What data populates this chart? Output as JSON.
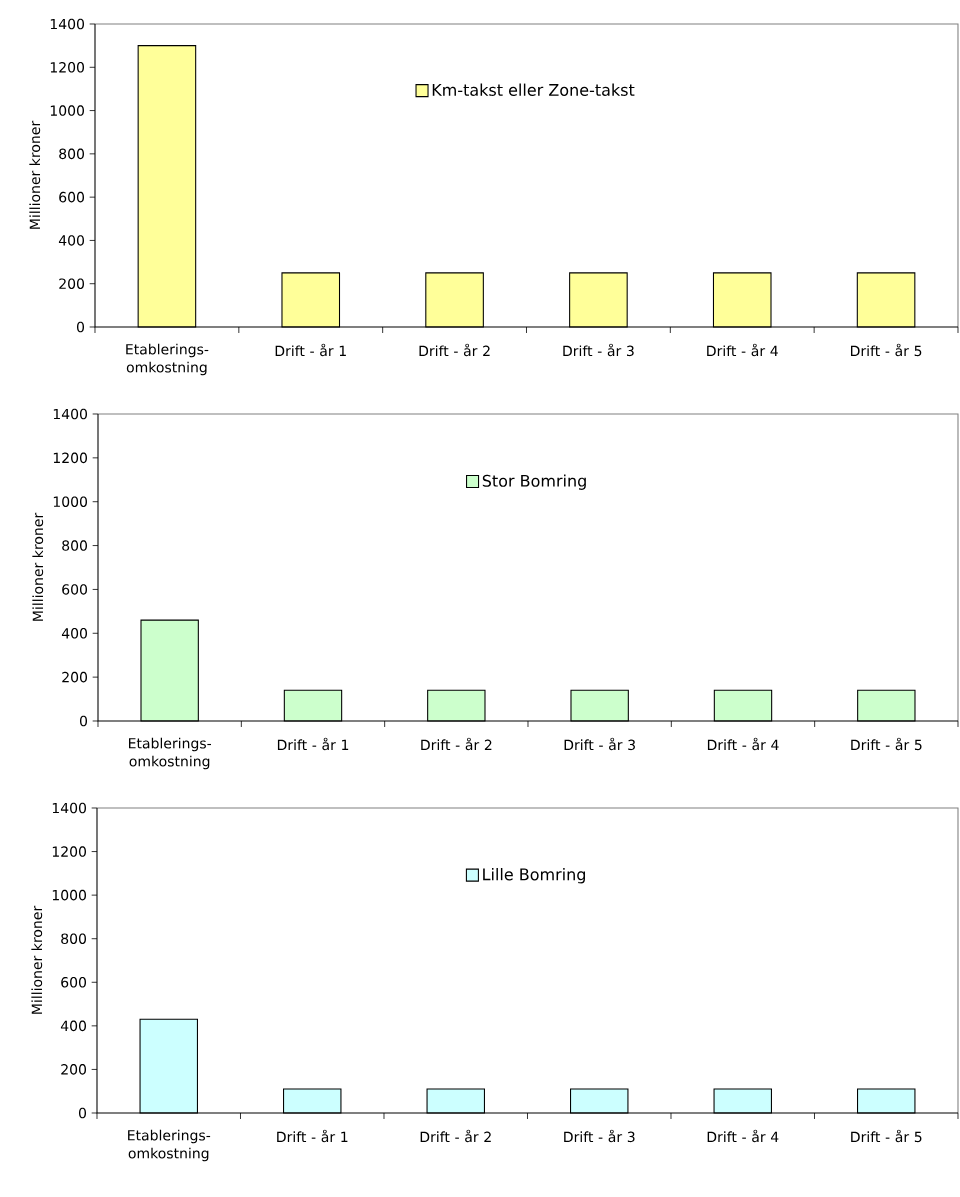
{
  "chart_data": [
    {
      "type": "bar",
      "categories": [
        "Etablerings-omkostning",
        "Drift - år 1",
        "Drift - år 2",
        "Drift - år 3",
        "Drift - år 4",
        "Drift - år 5"
      ],
      "series": [
        {
          "name": "Km-takst eller Zone-takst",
          "color": "#ffff99",
          "values": [
            1300,
            250,
            250,
            250,
            250,
            250
          ]
        }
      ],
      "ylabel": "Millioner kroner",
      "ylim": [
        0,
        1400
      ],
      "yticks": [
        0,
        200,
        400,
        600,
        800,
        1000,
        1200,
        1400
      ],
      "legend": "top"
    },
    {
      "type": "bar",
      "categories": [
        "Etablerings-omkostning",
        "Drift - år 1",
        "Drift - år 2",
        "Drift - år 3",
        "Drift - år 4",
        "Drift - år 5"
      ],
      "series": [
        {
          "name": "Stor Bomring",
          "color": "#ccffcc",
          "values": [
            460,
            140,
            140,
            140,
            140,
            140
          ]
        }
      ],
      "ylabel": "Millioner kroner",
      "ylim": [
        0,
        1400
      ],
      "yticks": [
        0,
        200,
        400,
        600,
        800,
        1000,
        1200,
        1400
      ],
      "legend": "top"
    },
    {
      "type": "bar",
      "categories": [
        "Etablerings-omkostning",
        "Drift - år 1",
        "Drift - år 2",
        "Drift - år 3",
        "Drift - år 4",
        "Drift - år 5"
      ],
      "series": [
        {
          "name": "Lille Bomring",
          "color": "#ccffff",
          "values": [
            430,
            110,
            110,
            110,
            110,
            110
          ]
        }
      ],
      "ylabel": "Millioner kroner",
      "ylim": [
        0,
        1400
      ],
      "yticks": [
        0,
        200,
        400,
        600,
        800,
        1000,
        1200,
        1400
      ],
      "legend": "top"
    }
  ]
}
